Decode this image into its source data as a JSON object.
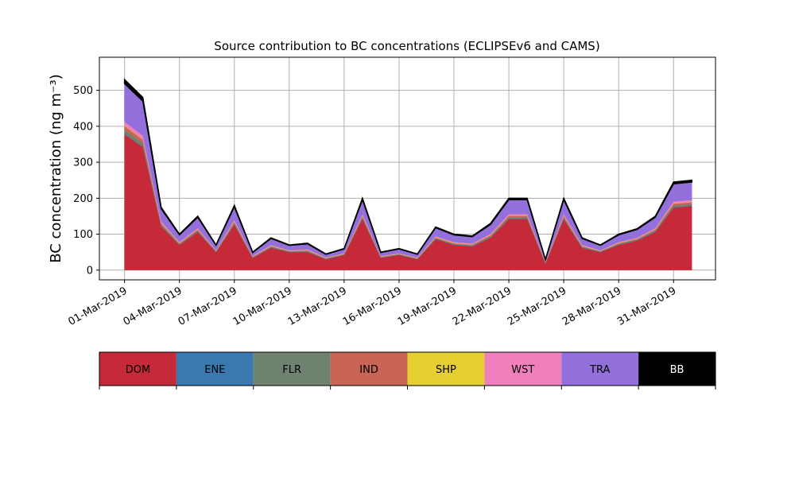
{
  "chart_data": {
    "type": "stacked_area",
    "title": "Source contribution to BC concentrations (ECLIPSEv6 and CAMS)",
    "y_label": "BC concentration (ng m⁻³)",
    "x": [
      "2019-03-01",
      "2019-03-02",
      "2019-03-03",
      "2019-03-04",
      "2019-03-05",
      "2019-03-06",
      "2019-03-07",
      "2019-03-08",
      "2019-03-09",
      "2019-03-10",
      "2019-03-11",
      "2019-03-12",
      "2019-03-13",
      "2019-03-14",
      "2019-03-15",
      "2019-03-16",
      "2019-03-17",
      "2019-03-18",
      "2019-03-19",
      "2019-03-20",
      "2019-03-21",
      "2019-03-22",
      "2019-03-23",
      "2019-03-24",
      "2019-03-25",
      "2019-03-26",
      "2019-03-27",
      "2019-03-28",
      "2019-03-29",
      "2019-03-30",
      "2019-03-31",
      "2019-04-01"
    ],
    "series": [
      {
        "name": "DOM",
        "color": "#c62a38",
        "values": [
          378,
          342,
          122,
          70,
          106,
          50,
          126,
          34,
          62,
          50,
          50,
          30,
          42,
          142,
          34,
          42,
          30,
          86,
          70,
          66,
          90,
          142,
          142,
          18,
          142,
          62,
          50,
          70,
          82,
          106,
          174,
          178
        ]
      },
      {
        "name": "ENE",
        "color": "#3a78b0",
        "values": [
          1,
          1,
          1,
          1,
          1,
          1,
          1,
          1,
          1,
          1,
          1,
          1,
          1,
          1,
          1,
          1,
          1,
          1,
          1,
          1,
          1,
          1,
          1,
          1,
          1,
          1,
          1,
          1,
          1,
          1,
          1,
          1
        ]
      },
      {
        "name": "FLR",
        "color": "#6f8270",
        "values": [
          11,
          10,
          4,
          2,
          3,
          1,
          4,
          1,
          2,
          1,
          2,
          1,
          1,
          4,
          1,
          1,
          1,
          2,
          2,
          2,
          3,
          4,
          4,
          1,
          4,
          2,
          1,
          2,
          2,
          3,
          5,
          5
        ]
      },
      {
        "name": "IND",
        "color": "#c96555",
        "values": [
          11,
          10,
          4,
          2,
          3,
          1,
          4,
          1,
          2,
          1,
          2,
          1,
          1,
          4,
          1,
          1,
          1,
          2,
          2,
          2,
          3,
          4,
          4,
          1,
          4,
          2,
          1,
          2,
          2,
          3,
          5,
          5
        ]
      },
      {
        "name": "SHP",
        "color": "#e6cf30",
        "values": [
          1,
          1,
          1,
          1,
          1,
          1,
          1,
          1,
          1,
          1,
          1,
          1,
          1,
          1,
          1,
          1,
          1,
          1,
          1,
          1,
          1,
          1,
          1,
          1,
          1,
          1,
          1,
          1,
          1,
          1,
          1,
          1
        ]
      },
      {
        "name": "WST",
        "color": "#f07fbe",
        "values": [
          11,
          10,
          4,
          2,
          3,
          1,
          4,
          1,
          2,
          1,
          2,
          1,
          1,
          4,
          1,
          1,
          1,
          2,
          2,
          2,
          3,
          4,
          4,
          1,
          4,
          2,
          1,
          2,
          2,
          3,
          5,
          5
        ]
      },
      {
        "name": "TRA",
        "color": "#9370db",
        "values": [
          106,
          96,
          35,
          20,
          30,
          14,
          36,
          10,
          18,
          14,
          15,
          9,
          12,
          40,
          10,
          12,
          9,
          24,
          20,
          19,
          26,
          40,
          40,
          6,
          40,
          18,
          14,
          20,
          23,
          30,
          49,
          50
        ]
      },
      {
        "name": "BB",
        "color": "#000000",
        "values": [
          11,
          10,
          4,
          2,
          3,
          1,
          4,
          1,
          2,
          1,
          2,
          1,
          1,
          4,
          1,
          1,
          1,
          2,
          2,
          2,
          3,
          4,
          4,
          1,
          4,
          2,
          1,
          2,
          2,
          3,
          5,
          5
        ]
      }
    ],
    "xlim": [
      "2019-02-27T15:00",
      "2019-04-02T07:00"
    ],
    "xticks": [
      {
        "value": "2019-03-01",
        "label": "01-Mar-2019"
      },
      {
        "value": "2019-03-04",
        "label": "04-Mar-2019"
      },
      {
        "value": "2019-03-07",
        "label": "07-Mar-2019"
      },
      {
        "value": "2019-03-10",
        "label": "10-Mar-2019"
      },
      {
        "value": "2019-03-13",
        "label": "13-Mar-2019"
      },
      {
        "value": "2019-03-16",
        "label": "16-Mar-2019"
      },
      {
        "value": "2019-03-19",
        "label": "19-Mar-2019"
      },
      {
        "value": "2019-03-22",
        "label": "22-Mar-2019"
      },
      {
        "value": "2019-03-25",
        "label": "25-Mar-2019"
      },
      {
        "value": "2019-03-28",
        "label": "28-Mar-2019"
      },
      {
        "value": "2019-03-31",
        "label": "31-Mar-2019"
      }
    ],
    "ylim": [
      -27,
      592
    ],
    "yticks": [
      0,
      100,
      200,
      300,
      400,
      500
    ],
    "grid": true
  }
}
